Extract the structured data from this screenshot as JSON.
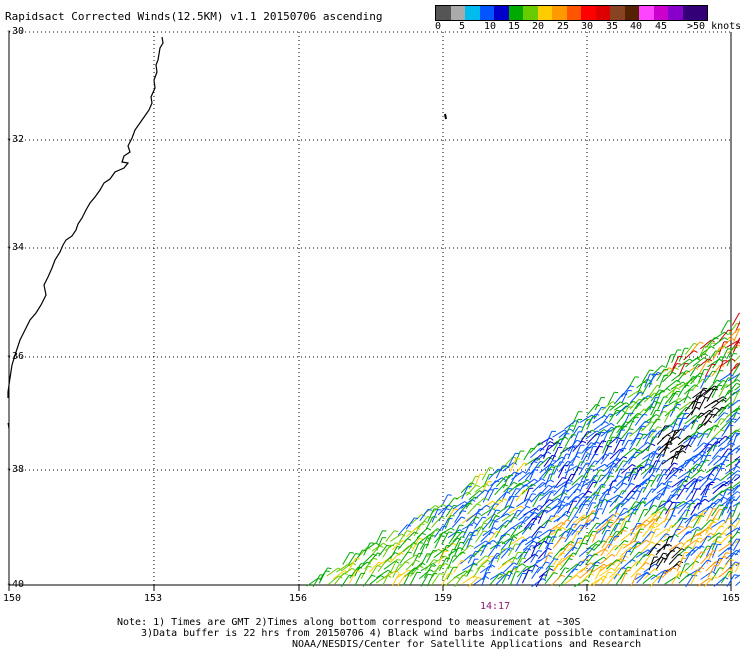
{
  "title": "Rapidsact Corrected Winds(12.5KM) v1.1 20150706 ascending",
  "legend": {
    "colors": [
      "#555555",
      "#aaaaaa",
      "#00bbee",
      "#0055ff",
      "#0000cc",
      "#00aa00",
      "#66cc00",
      "#ffcc00",
      "#ff9900",
      "#ff5500",
      "#ff0000",
      "#dd0000",
      "#884422",
      "#552200",
      "#ff44ff",
      "#cc00cc",
      "#8800cc",
      "#330077"
    ],
    "labels": [
      "0",
      "5",
      "10",
      "15",
      "20",
      "25",
      "30",
      "35",
      "40",
      "45",
      ">50 knots"
    ]
  },
  "map": {
    "lon_labels": [
      "150",
      "153",
      "156",
      "159",
      "162",
      "165"
    ],
    "lat_labels": [
      "-30",
      "-32",
      "-34",
      "-36",
      "-38",
      "-40"
    ],
    "pass_time": "14:17"
  },
  "notes": {
    "line1": "Note: 1) Times are GMT 2)Times along bottom correspond to measurement at ~30S",
    "line2": "3)Data buffer is 22 hrs from 20150706 4) Black wind barbs indicate possible contamination",
    "line3": "NOAA/NESDIS/Center for Satellite Applications and Research"
  }
}
